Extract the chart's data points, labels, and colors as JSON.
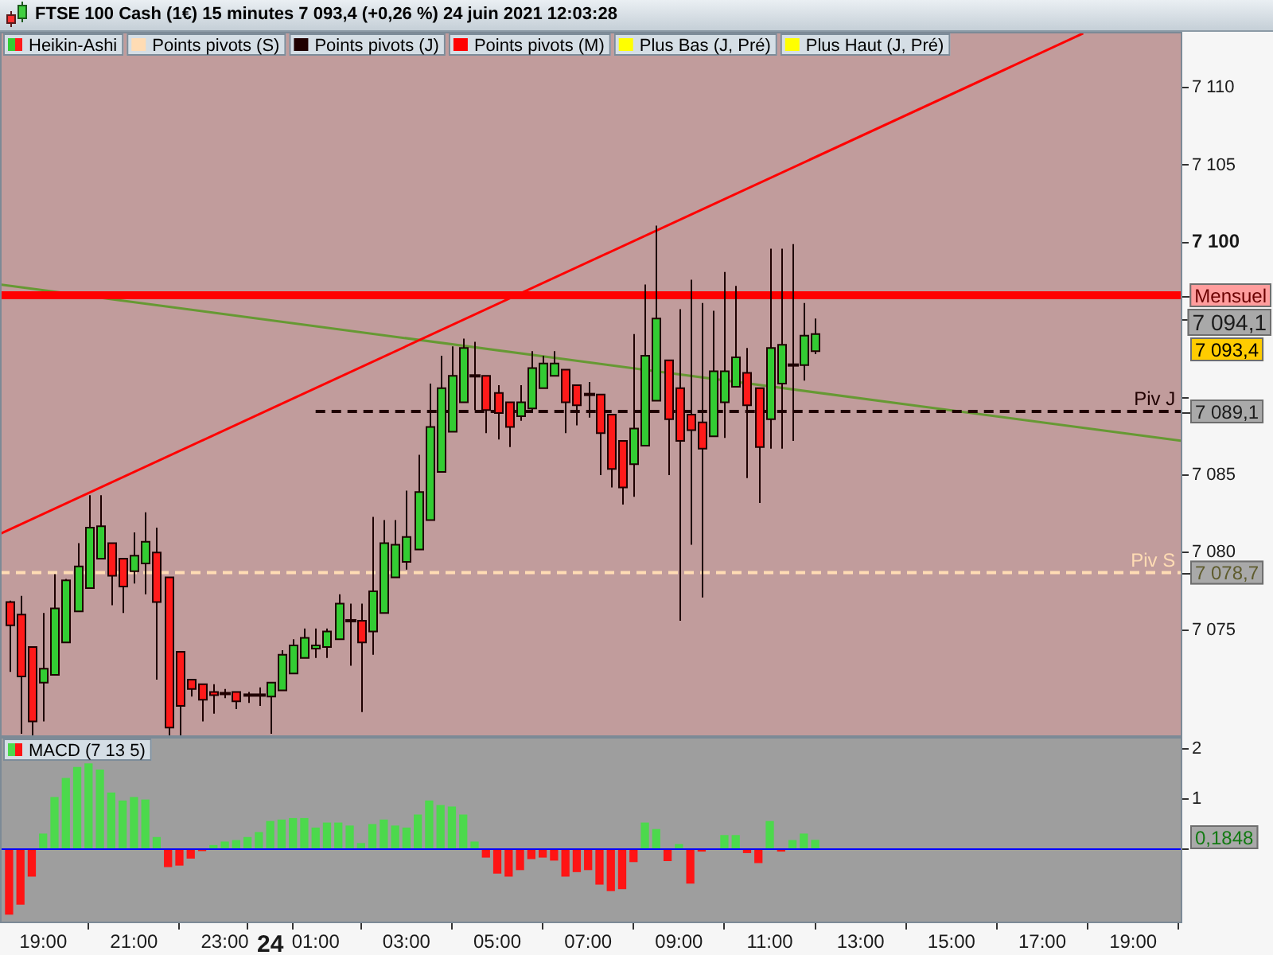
{
  "chart_data": [
    {
      "type": "candlestick",
      "title": "FTSE 100 Cash (1€) 15 minutes 7 093,4 (+0,26 %) 24 juin 2021 12:03:28",
      "xlim": [
        "2021-06-23T18:03",
        "2021-06-24T20:05"
      ],
      "ylim": [
        7068.1,
        7113.6
      ],
      "yticks": [
        {
          "value": 7075,
          "label": "7 075"
        },
        {
          "value": 7080,
          "label": "7 080"
        },
        {
          "value": 7085,
          "label": "7 085"
        },
        {
          "value": 7090,
          "label": null
        },
        {
          "value": 7095,
          "label": null
        },
        {
          "value": 7100,
          "label": "7 100"
        },
        {
          "value": 7105,
          "label": "7 105"
        },
        {
          "value": 7110,
          "label": "7 110"
        }
      ],
      "tick_labels": "y",
      "legend": "top left",
      "series": [
        {
          "name": "Heikin-Ashi",
          "type": "candlestick",
          "x": [
            "2021-06-23T18:15",
            "2021-06-23T18:30",
            "2021-06-23T18:45",
            "2021-06-23T19:00",
            "2021-06-23T19:15",
            "2021-06-23T19:30",
            "2021-06-23T19:45",
            "2021-06-23T20:00",
            "2021-06-23T20:15",
            "2021-06-23T20:30",
            "2021-06-23T20:45",
            "2021-06-23T21:00",
            "2021-06-23T21:15",
            "2021-06-23T21:30",
            "2021-06-23T21:45",
            "2021-06-23T22:00",
            "2021-06-23T22:15",
            "2021-06-23T22:30",
            "2021-06-23T22:45",
            "2021-06-23T23:00",
            "2021-06-23T23:15",
            "2021-06-23T23:30",
            "2021-06-23T23:45",
            "2021-06-24T00:00",
            "2021-06-24T00:15",
            "2021-06-24T00:30",
            "2021-06-24T00:45",
            "2021-06-24T01:00",
            "2021-06-24T01:15",
            "2021-06-24T01:30",
            "2021-06-24T01:45",
            "2021-06-24T02:00",
            "2021-06-24T02:15",
            "2021-06-24T02:30",
            "2021-06-24T02:45",
            "2021-06-24T03:00",
            "2021-06-24T03:15",
            "2021-06-24T03:30",
            "2021-06-24T03:45",
            "2021-06-24T04:00",
            "2021-06-24T04:15",
            "2021-06-24T04:30",
            "2021-06-24T04:45",
            "2021-06-24T05:00",
            "2021-06-24T05:15",
            "2021-06-24T05:30",
            "2021-06-24T05:45",
            "2021-06-24T06:00",
            "2021-06-24T06:15",
            "2021-06-24T06:30",
            "2021-06-24T06:45",
            "2021-06-24T07:00",
            "2021-06-24T07:15",
            "2021-06-24T07:30",
            "2021-06-24T07:45",
            "2021-06-24T08:00",
            "2021-06-24T08:15",
            "2021-06-24T08:30",
            "2021-06-24T08:45",
            "2021-06-24T09:00",
            "2021-06-24T09:15",
            "2021-06-24T09:30",
            "2021-06-24T09:45",
            "2021-06-24T10:00",
            "2021-06-24T10:15",
            "2021-06-24T10:30",
            "2021-06-24T10:45",
            "2021-06-24T11:00",
            "2021-06-24T11:15",
            "2021-06-24T11:30",
            "2021-06-24T11:45",
            "2021-06-24T12:00"
          ],
          "ohlc": [
            [
              7076.8,
              7076.9,
              7072.3,
              7075.3
            ],
            [
              7076.0,
              7077.2,
              7068.3,
              7072.0
            ],
            [
              7073.9,
              7073.9,
              7068.2,
              7069.1
            ],
            [
              7071.6,
              7076.1,
              7069.1,
              7072.5
            ],
            [
              7072.1,
              7078.6,
              7072.1,
              7076.4
            ],
            [
              7074.2,
              7078.3,
              7074.2,
              7078.2
            ],
            [
              7076.2,
              7080.6,
              7076.2,
              7079.1
            ],
            [
              7077.7,
              7083.7,
              7077.7,
              7081.6
            ],
            [
              7079.6,
              7083.7,
              7079.6,
              7081.7
            ],
            [
              7080.6,
              7080.6,
              7076.6,
              7078.5
            ],
            [
              7079.6,
              7079.6,
              7076.1,
              7077.8
            ],
            [
              7078.8,
              7081.3,
              7078.0,
              7079.8
            ],
            [
              7079.3,
              7082.6,
              7077.3,
              7080.7
            ],
            [
              7080.0,
              7081.6,
              7071.8,
              7076.8
            ],
            [
              7078.4,
              7078.4,
              7068.2,
              7068.7
            ],
            [
              7073.6,
              7073.6,
              7068.2,
              7070.1
            ],
            [
              7071.8,
              7071.8,
              7070.7,
              7071.2
            ],
            [
              7071.5,
              7071.5,
              7069.1,
              7070.5
            ],
            [
              7071.0,
              7071.5,
              7069.6,
              7070.8
            ],
            [
              7070.9,
              7071.2,
              7070.6,
              7070.9
            ],
            [
              7071.0,
              7071.0,
              7069.9,
              7070.4
            ],
            [
              7070.8,
              7071.0,
              7070.3,
              7070.8
            ],
            [
              7070.8,
              7071.3,
              7070.1,
              7070.8
            ],
            [
              7070.7,
              7071.6,
              7068.3,
              7071.6
            ],
            [
              7071.1,
              7073.7,
              7071.1,
              7073.4
            ],
            [
              7072.2,
              7074.4,
              7072.2,
              7074.0
            ],
            [
              7073.2,
              7075.1,
              7073.2,
              7074.5
            ],
            [
              7073.8,
              7075.1,
              7073.2,
              7074.0
            ],
            [
              7073.9,
              7075.1,
              7073.2,
              7074.9
            ],
            [
              7074.4,
              7077.3,
              7074.4,
              7076.7
            ],
            [
              7075.6,
              7076.7,
              7072.7,
              7075.6
            ],
            [
              7075.6,
              7076.7,
              7069.7,
              7074.2
            ],
            [
              7074.9,
              7082.3,
              7073.4,
              7077.5
            ],
            [
              7076.1,
              7082.1,
              7076.1,
              7080.6
            ],
            [
              7078.4,
              7082.1,
              7078.4,
              7080.5
            ],
            [
              7079.4,
              7084.0,
              7078.9,
              7081.0
            ],
            [
              7080.2,
              7086.3,
              7080.2,
              7083.9
            ],
            [
              7082.1,
              7090.9,
              7082.1,
              7088.1
            ],
            [
              7085.2,
              7092.7,
              7085.2,
              7090.6
            ],
            [
              7087.8,
              7093.3,
              7087.8,
              7091.4
            ],
            [
              7089.7,
              7093.8,
              7089.7,
              7093.2
            ],
            [
              7091.4,
              7093.6,
              7089.2,
              7091.4
            ],
            [
              7091.4,
              7091.4,
              7087.7,
              7089.2
            ],
            [
              7090.3,
              7090.8,
              7087.3,
              7089.0
            ],
            [
              7089.7,
              7089.7,
              7086.8,
              7088.1
            ],
            [
              7088.8,
              7090.8,
              7088.5,
              7089.7
            ],
            [
              7089.3,
              7093.0,
              7089.0,
              7091.9
            ],
            [
              7090.6,
              7092.7,
              7090.6,
              7092.2
            ],
            [
              7091.4,
              7093.0,
              7091.4,
              7092.2
            ],
            [
              7091.8,
              7091.8,
              7087.7,
              7089.7
            ],
            [
              7090.8,
              7090.8,
              7088.2,
              7089.5
            ],
            [
              7090.2,
              7091.0,
              7088.7,
              7090.2
            ],
            [
              7090.2,
              7090.2,
              7085.0,
              7087.7
            ],
            [
              7088.9,
              7088.9,
              7084.2,
              7085.4
            ],
            [
              7087.2,
              7087.2,
              7083.1,
              7084.2
            ],
            [
              7085.7,
              7094.1,
              7083.6,
              7088.0
            ],
            [
              7086.9,
              7097.3,
              7086.9,
              7092.7
            ],
            [
              7089.8,
              7101.1,
              7089.8,
              7095.1
            ],
            [
              7092.4,
              7092.4,
              7085.0,
              7088.6
            ],
            [
              7090.6,
              7095.7,
              7075.6,
              7087.2
            ],
            [
              7088.9,
              7097.6,
              7080.5,
              7087.9
            ],
            [
              7088.4,
              7096.1,
              7077.1,
              7086.7
            ],
            [
              7087.5,
              7095.6,
              7087.5,
              7091.7
            ],
            [
              7089.7,
              7098.1,
              7087.4,
              7091.7
            ],
            [
              7090.7,
              7097.2,
              7090.7,
              7092.6
            ],
            [
              7091.6,
              7093.2,
              7084.8,
              7089.5
            ],
            [
              7090.6,
              7090.6,
              7083.2,
              7086.8
            ],
            [
              7088.6,
              7099.6,
              7086.7,
              7093.2
            ],
            [
              7090.9,
              7099.6,
              7086.7,
              7093.4
            ],
            [
              7092.1,
              7099.9,
              7087.2,
              7092.1
            ],
            [
              7092.1,
              7096.1,
              7091.1,
              7094.0
            ],
            [
              7093.0,
              7095.1,
              7092.8,
              7094.1
            ]
          ],
          "colors": [
            "#ff1a1a",
            "#ff1a1a",
            "#ff1a1a",
            "#33cc33",
            "#33cc33",
            "#33cc33",
            "#33cc33",
            "#33cc33",
            "#33cc33",
            "#ff1a1a",
            "#ff1a1a",
            "#33cc33",
            "#33cc33",
            "#ff1a1a",
            "#ff1a1a",
            "#ff1a1a",
            "#ff1a1a",
            "#ff1a1a",
            "#ff1a1a",
            "#200000",
            "#ff1a1a",
            "#200000",
            "#200000",
            "#33cc33",
            "#33cc33",
            "#33cc33",
            "#33cc33",
            "#33cc33",
            "#33cc33",
            "#33cc33",
            "#200000",
            "#ff1a1a",
            "#33cc33",
            "#33cc33",
            "#33cc33",
            "#33cc33",
            "#33cc33",
            "#33cc33",
            "#33cc33",
            "#33cc33",
            "#33cc33",
            "#200000",
            "#ff1a1a",
            "#ff1a1a",
            "#ff1a1a",
            "#33cc33",
            "#33cc33",
            "#33cc33",
            "#33cc33",
            "#ff1a1a",
            "#ff1a1a",
            "#200000",
            "#ff1a1a",
            "#ff1a1a",
            "#ff1a1a",
            "#33cc33",
            "#33cc33",
            "#33cc33",
            "#ff1a1a",
            "#ff1a1a",
            "#ff1a1a",
            "#ff1a1a",
            "#33cc33",
            "#33cc33",
            "#33cc33",
            "#ff1a1a",
            "#ff1a1a",
            "#33cc33",
            "#33cc33",
            "#200000",
            "#33cc33",
            "#33cc33"
          ]
        },
        {
          "name": "Points pivots (S)",
          "type": "line",
          "color": "#ffdcb4",
          "line_style": "dashed",
          "x": [
            "2021-06-23T18:03",
            "2021-06-24T20:05"
          ],
          "values": [
            7078.7,
            7078.7
          ]
        },
        {
          "name": "Points pivots (J)",
          "type": "line",
          "color": "#200000",
          "line_style": "dashed",
          "x": [
            "2021-06-24T01:00",
            "2021-06-24T20:05"
          ],
          "values": [
            7089.1,
            7089.1
          ]
        },
        {
          "name": "Points pivots (M)",
          "type": "line",
          "color": "#ff0000",
          "x": [
            "2021-06-23T18:03",
            "2021-06-24T20:05"
          ],
          "values": [
            7096.6,
            7096.6
          ]
        },
        {
          "name": "Plus Bas (J, Pré)",
          "type": "line",
          "color": "#ffff00"
        },
        {
          "name": "Plus Haut (J, Pré)",
          "type": "line",
          "color": "#ffff00"
        },
        {
          "type": "line",
          "color": "#ff0000",
          "x": [
            "2021-06-23T18:03",
            "2021-06-24T17:54"
          ],
          "values": [
            7081.2,
            7113.5
          ]
        },
        {
          "type": "line",
          "color": "#669933",
          "x": [
            "2021-06-23T18:03",
            "2021-06-24T20:05"
          ],
          "values": [
            7097.3,
            7087.2
          ]
        }
      ],
      "annotations": [
        {
          "text": "Mensuel",
          "x": "2021-06-24T20:05",
          "y": 7096.6
        },
        "7 094,1",
        "7 093,4",
        {
          "text": "Piv J",
          "x": "2021-06-24T20:00",
          "y": 7089.1
        },
        {
          "text": "7 089,1",
          "x": "2021-06-24T20:05",
          "y": 7089.1
        },
        {
          "text": "Piv S",
          "x": "2021-06-24T20:00",
          "y": 7078.7
        },
        {
          "text": "7 078,7",
          "x": "2021-06-24T20:05",
          "y": 7078.7
        }
      ]
    },
    {
      "type": "bar",
      "x": [
        "2021-06-23T18:15",
        "2021-06-23T18:30",
        "2021-06-23T18:45",
        "2021-06-23T19:00",
        "2021-06-23T19:15",
        "2021-06-23T19:30",
        "2021-06-23T19:45",
        "2021-06-23T20:00",
        "2021-06-23T20:15",
        "2021-06-23T20:30",
        "2021-06-23T20:45",
        "2021-06-23T21:00",
        "2021-06-23T21:15",
        "2021-06-23T21:30",
        "2021-06-23T21:45",
        "2021-06-23T22:00",
        "2021-06-23T22:15",
        "2021-06-23T22:30",
        "2021-06-23T22:45",
        "2021-06-23T23:00",
        "2021-06-23T23:15",
        "2021-06-23T23:30",
        "2021-06-23T23:45",
        "2021-06-24T00:00",
        "2021-06-24T00:15",
        "2021-06-24T00:30",
        "2021-06-24T00:45",
        "2021-06-24T01:00",
        "2021-06-24T01:15",
        "2021-06-24T01:30",
        "2021-06-24T01:45",
        "2021-06-24T02:00",
        "2021-06-24T02:15",
        "2021-06-24T02:30",
        "2021-06-24T02:45",
        "2021-06-24T03:00",
        "2021-06-24T03:15",
        "2021-06-24T03:30",
        "2021-06-24T03:45",
        "2021-06-24T04:00",
        "2021-06-24T04:15",
        "2021-06-24T04:30",
        "2021-06-24T04:45",
        "2021-06-24T05:00",
        "2021-06-24T05:15",
        "2021-06-24T05:30",
        "2021-06-24T05:45",
        "2021-06-24T06:00",
        "2021-06-24T06:15",
        "2021-06-24T06:30",
        "2021-06-24T06:45",
        "2021-06-24T07:00",
        "2021-06-24T07:15",
        "2021-06-24T07:30",
        "2021-06-24T07:45",
        "2021-06-24T08:00",
        "2021-06-24T08:15",
        "2021-06-24T08:30",
        "2021-06-24T08:45",
        "2021-06-24T09:00",
        "2021-06-24T09:15",
        "2021-06-24T09:30",
        "2021-06-24T09:45",
        "2021-06-24T10:00",
        "2021-06-24T10:15",
        "2021-06-24T10:30",
        "2021-06-24T10:45",
        "2021-06-24T11:00",
        "2021-06-24T11:15",
        "2021-06-24T11:30",
        "2021-06-24T11:45",
        "2021-06-24T12:00"
      ],
      "series": [
        {
          "name": "MACD (7 13 5)",
          "values": [
            -1.31,
            -1.11,
            -0.55,
            0.31,
            1.04,
            1.42,
            1.64,
            1.71,
            1.59,
            1.13,
            0.97,
            1.04,
            0.99,
            0.24,
            -0.36,
            -0.33,
            -0.19,
            -0.04,
            0.08,
            0.15,
            0.18,
            0.24,
            0.34,
            0.56,
            0.59,
            0.62,
            0.62,
            0.43,
            0.53,
            0.53,
            0.47,
            0.12,
            0.5,
            0.59,
            0.47,
            0.43,
            0.69,
            0.97,
            0.88,
            0.85,
            0.69,
            0.15,
            -0.17,
            -0.49,
            -0.55,
            -0.42,
            -0.2,
            -0.17,
            -0.23,
            -0.55,
            -0.46,
            -0.42,
            -0.71,
            -0.84,
            -0.8,
            -0.26,
            0.53,
            0.4,
            -0.24,
            0.1,
            -0.69,
            -0.05,
            null,
            0.28,
            0.28,
            -0.08,
            -0.28,
            0.56,
            -0.05,
            0.18,
            0.31,
            0.1848
          ],
          "colors": [
            "#ff1414",
            "#ff1414",
            "#ff1414",
            "#4cd94c",
            "#4cd94c",
            "#4cd94c",
            "#4cd94c",
            "#4cd94c",
            "#4cd94c",
            "#4cd94c",
            "#4cd94c",
            "#4cd94c",
            "#4cd94c",
            "#4cd94c",
            "#ff1414",
            "#ff1414",
            "#ff1414",
            "#ff1414",
            "#4cd94c",
            "#4cd94c",
            "#4cd94c",
            "#4cd94c",
            "#4cd94c",
            "#4cd94c",
            "#4cd94c",
            "#4cd94c",
            "#4cd94c",
            "#4cd94c",
            "#4cd94c",
            "#4cd94c",
            "#4cd94c",
            "#4cd94c",
            "#4cd94c",
            "#4cd94c",
            "#4cd94c",
            "#4cd94c",
            "#4cd94c",
            "#4cd94c",
            "#4cd94c",
            "#4cd94c",
            "#4cd94c",
            "#4cd94c",
            "#ff1414",
            "#ff1414",
            "#ff1414",
            "#ff1414",
            "#ff1414",
            "#ff1414",
            "#ff1414",
            "#ff1414",
            "#ff1414",
            "#ff1414",
            "#ff1414",
            "#ff1414",
            "#ff1414",
            "#ff1414",
            "#4cd94c",
            "#4cd94c",
            "#ff1414",
            "#4cd94c",
            "#ff1414",
            "#ff1414",
            "#4cd94c",
            "#4cd94c",
            "#4cd94c",
            "#ff1414",
            "#ff1414",
            "#4cd94c",
            "#ff1414",
            "#4cd94c",
            "#4cd94c",
            "#4cd94c"
          ]
        }
      ],
      "xlim": [
        "2021-06-23T18:03",
        "2021-06-24T20:05"
      ],
      "xticks": [
        {
          "value": "2021-06-23T19:00",
          "label": "19:00"
        },
        {
          "value": "2021-06-23T21:00",
          "label": "21:00"
        },
        {
          "value": "2021-06-23T23:00",
          "label": "23:00"
        },
        {
          "value": "2021-06-24T00:00",
          "label": "24"
        },
        {
          "value": "2021-06-24T01:00",
          "label": "01:00"
        },
        {
          "value": "2021-06-24T03:00",
          "label": "03:00"
        },
        {
          "value": "2021-06-24T05:00",
          "label": "05:00"
        },
        {
          "value": "2021-06-24T07:00",
          "label": "07:00"
        },
        {
          "value": "2021-06-24T09:00",
          "label": "09:00"
        },
        {
          "value": "2021-06-24T11:00",
          "label": "11:00"
        },
        {
          "value": "2021-06-24T13:00",
          "label": "13:00"
        },
        {
          "value": "2021-06-24T15:00",
          "label": "15:00"
        },
        {
          "value": "2021-06-24T17:00",
          "label": "17:00"
        },
        {
          "value": "2021-06-24T19:00",
          "label": "19:00"
        }
      ],
      "ylim": [
        -1.48,
        2.24
      ],
      "yticks": [
        {
          "value": 0,
          "label": null
        },
        1,
        2
      ],
      "ref_lines": [
        {
          "axis": "y",
          "value": 0,
          "color": "#0000ff"
        }
      ],
      "legend": "top left",
      "annotations": [
        "0,1848"
      ]
    }
  ]
}
